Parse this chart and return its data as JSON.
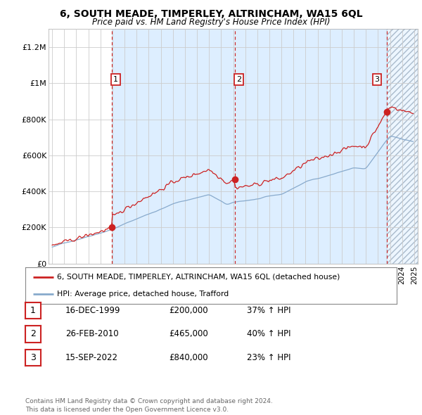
{
  "title": "6, SOUTH MEADE, TIMPERLEY, ALTRINCHAM, WA15 6QL",
  "subtitle": "Price paid vs. HM Land Registry's House Price Index (HPI)",
  "ylabel_ticks": [
    "£0",
    "£200K",
    "£400K",
    "£600K",
    "£800K",
    "£1M",
    "£1.2M"
  ],
  "ytick_values": [
    0,
    200000,
    400000,
    600000,
    800000,
    1000000,
    1200000
  ],
  "ylim": [
    0,
    1300000
  ],
  "xlim_start": 1994.7,
  "xlim_end": 2025.3,
  "red_line_color": "#cc2222",
  "blue_line_color": "#88aacc",
  "grid_color": "#cccccc",
  "background_color": "#ffffff",
  "plot_bg_color": "#ffffff",
  "shade_color": "#ddeeff",
  "hatch_color": "#ccddee",
  "sale_dates": [
    1999.96,
    2010.15,
    2022.71
  ],
  "sale_prices": [
    200000,
    465000,
    840000
  ],
  "sale_labels": [
    "1",
    "2",
    "3"
  ],
  "legend_line1": "6, SOUTH MEADE, TIMPERLEY, ALTRINCHAM, WA15 6QL (detached house)",
  "legend_line2": "HPI: Average price, detached house, Trafford",
  "table_rows": [
    [
      "1",
      "16-DEC-1999",
      "£200,000",
      "37% ↑ HPI"
    ],
    [
      "2",
      "26-FEB-2010",
      "£465,000",
      "40% ↑ HPI"
    ],
    [
      "3",
      "15-SEP-2022",
      "£840,000",
      "23% ↑ HPI"
    ]
  ],
  "footer": "Contains HM Land Registry data © Crown copyright and database right 2024.\nThis data is licensed under the Open Government Licence v3.0.",
  "dashed_vline_color": "#cc2222"
}
